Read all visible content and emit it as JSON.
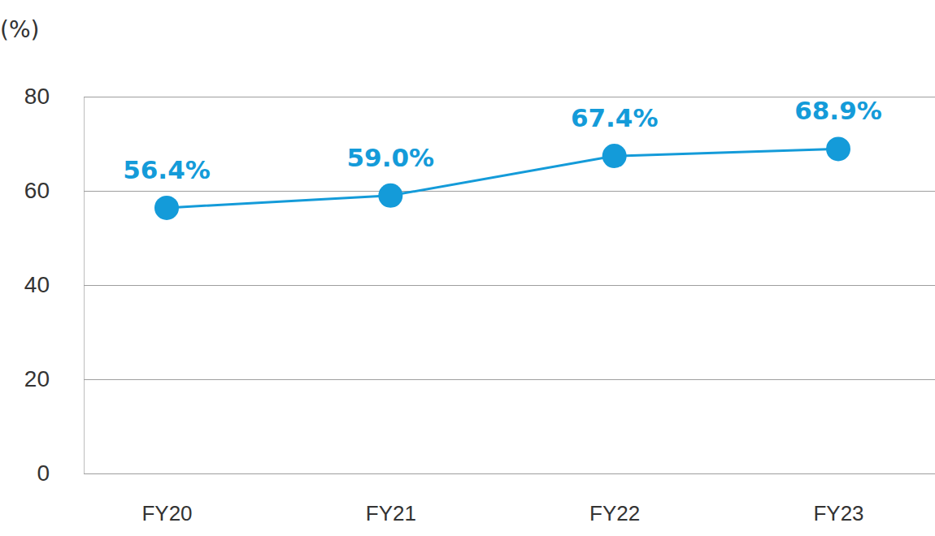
{
  "chart_data": {
    "type": "line",
    "y_label": "(%)",
    "categories": [
      "FY20",
      "FY21",
      "FY22",
      "FY23"
    ],
    "values": [
      56.4,
      59.0,
      67.4,
      68.9
    ],
    "value_labels": [
      "56.4%",
      "59.0%",
      "67.4%",
      "68.9%"
    ],
    "color": "#149bd9",
    "marker": "circle",
    "ylim": [
      0,
      80
    ],
    "yticks": [
      0,
      20,
      40,
      60,
      80
    ],
    "grid": true,
    "data_labels": true
  }
}
